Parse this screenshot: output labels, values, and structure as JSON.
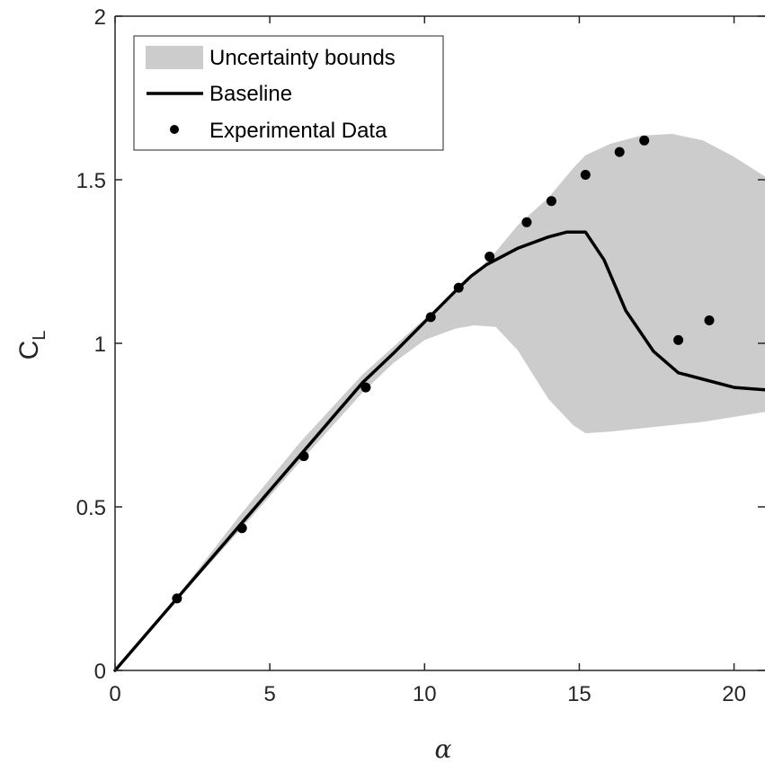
{
  "chart_data": {
    "type": "line",
    "title": "",
    "xlabel": "α",
    "ylabel": "C",
    "ylabel_subscript": "L",
    "xlim": [
      0,
      21
    ],
    "ylim": [
      0,
      2
    ],
    "xticks": [
      {
        "value": 0,
        "label": "0"
      },
      {
        "value": 5,
        "label": "5"
      },
      {
        "value": 10,
        "label": "10"
      },
      {
        "value": 15,
        "label": "15"
      },
      {
        "value": 20,
        "label": "20"
      }
    ],
    "yticks": [
      {
        "value": 0,
        "label": "0"
      },
      {
        "value": 0.5,
        "label": "0.5"
      },
      {
        "value": 1,
        "label": "1"
      },
      {
        "value": 1.5,
        "label": "1.5"
      },
      {
        "value": 2,
        "label": "2"
      }
    ],
    "grid": false,
    "legend_position": "top-left",
    "legend": [
      {
        "label": "Uncertainty bounds",
        "kind": "area"
      },
      {
        "label": "Baseline",
        "kind": "line"
      },
      {
        "label": "Experimental Data",
        "kind": "marker"
      }
    ],
    "colors": {
      "band": "#cccccc",
      "line": "#000000",
      "marker": "#000000",
      "axis": "#262626"
    },
    "series": [
      {
        "name": "Uncertainty bounds",
        "kind": "area",
        "x": [
          0,
          2,
          4,
          6,
          8,
          9,
          10,
          11,
          11.6,
          12.3,
          13,
          14,
          14.8,
          15.2,
          16,
          17,
          18,
          19,
          20,
          21
        ],
        "upper": [
          0,
          0.225,
          0.47,
          0.7,
          0.905,
          0.99,
          1.075,
          1.16,
          1.21,
          1.28,
          1.36,
          1.445,
          1.535,
          1.575,
          1.61,
          1.635,
          1.64,
          1.62,
          1.57,
          1.51
        ],
        "lower": [
          0,
          0.215,
          0.425,
          0.64,
          0.85,
          0.94,
          1.01,
          1.045,
          1.055,
          1.05,
          0.98,
          0.83,
          0.75,
          0.725,
          0.73,
          0.74,
          0.75,
          0.76,
          0.775,
          0.79
        ]
      },
      {
        "name": "Baseline",
        "kind": "line",
        "x": [
          0,
          2,
          4,
          6,
          8,
          9,
          10,
          11,
          11.5,
          12,
          13,
          14,
          14.6,
          15.2,
          15.8,
          16.5,
          17.4,
          18.2,
          19,
          20,
          21
        ],
        "y": [
          0,
          0.22,
          0.44,
          0.66,
          0.88,
          0.97,
          1.065,
          1.16,
          1.205,
          1.24,
          1.29,
          1.325,
          1.34,
          1.34,
          1.255,
          1.1,
          0.975,
          0.91,
          0.89,
          0.865,
          0.858
        ]
      },
      {
        "name": "Experimental Data",
        "kind": "scatter",
        "x": [
          2,
          4.1,
          6.1,
          8.1,
          10.2,
          11.1,
          12.1,
          13.3,
          14.1,
          15.2,
          16.3,
          17.1,
          18.2,
          19.2
        ],
        "y": [
          0.22,
          0.435,
          0.655,
          0.865,
          1.08,
          1.17,
          1.265,
          1.37,
          1.435,
          1.515,
          1.585,
          1.62,
          1.01,
          1.07
        ]
      }
    ]
  }
}
